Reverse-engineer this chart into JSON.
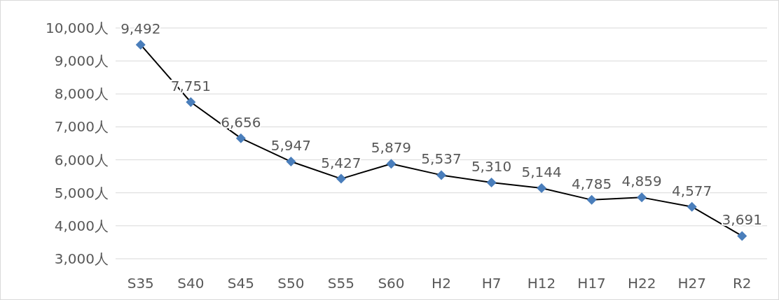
{
  "chart_data": {
    "type": "line",
    "categories": [
      "S35",
      "S40",
      "S45",
      "S50",
      "S55",
      "S60",
      "H2",
      "H7",
      "H12",
      "H17",
      "H22",
      "H27",
      "R2"
    ],
    "series": [
      {
        "color": "#4a7ebb",
        "values": [
          9492,
          7751,
          6656,
          5947,
          5427,
          5879,
          5537,
          5310,
          5144,
          4785,
          4859,
          4577,
          3691
        ],
        "value_labels": [
          "9,492",
          "7,751",
          "6,656",
          "5,947",
          "5,427",
          "5,879",
          "5,537",
          "5,310",
          "5,144",
          "4,785",
          "4,859",
          "4,577",
          "3,691"
        ]
      }
    ],
    "ylim": [
      3000,
      10000
    ],
    "yticks": [
      {
        "value": 3000,
        "label": "3,000人"
      },
      {
        "value": 4000,
        "label": "4,000人"
      },
      {
        "value": 5000,
        "label": "5,000人"
      },
      {
        "value": 6000,
        "label": "6,000人"
      },
      {
        "value": 7000,
        "label": "7,000人"
      },
      {
        "value": 8000,
        "label": "8,000人"
      },
      {
        "value": 9000,
        "label": "9,000人"
      },
      {
        "value": 10000,
        "label": "10,000人"
      }
    ],
    "grid": "y",
    "marker": "diamond",
    "line_style": "solid"
  }
}
